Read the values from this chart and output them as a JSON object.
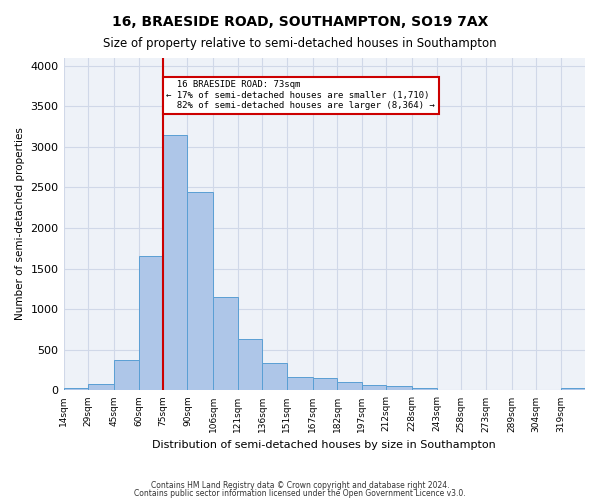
{
  "title": "16, BRAESIDE ROAD, SOUTHAMPTON, SO19 7AX",
  "subtitle": "Size of property relative to semi-detached houses in Southampton",
  "xlabel": "Distribution of semi-detached houses by size in Southampton",
  "ylabel": "Number of semi-detached properties",
  "footer_line1": "Contains HM Land Registry data © Crown copyright and database right 2024.",
  "footer_line2": "Contains public sector information licensed under the Open Government Licence v3.0.",
  "bar_color": "#aec6e8",
  "bar_edge_color": "#5a9fd4",
  "grid_color": "#d0d8e8",
  "background_color": "#eef2f8",
  "annotation_box_color": "#ffffff",
  "annotation_border_color": "#cc0000",
  "vline_color": "#cc0000",
  "annotation_text_line1": "16 BRAESIDE ROAD: 73sqm",
  "annotation_text_line2": "← 17% of semi-detached houses are smaller (1,710)",
  "annotation_text_line3": "82% of semi-detached houses are larger (8,364) →",
  "categories": [
    "14sqm",
    "29sqm",
    "45sqm",
    "60sqm",
    "75sqm",
    "90sqm",
    "106sqm",
    "121sqm",
    "136sqm",
    "151sqm",
    "167sqm",
    "182sqm",
    "197sqm",
    "212sqm",
    "228sqm",
    "243sqm",
    "258sqm",
    "273sqm",
    "289sqm",
    "304sqm",
    "319sqm"
  ],
  "bin_edges": [
    14,
    29,
    45,
    60,
    75,
    90,
    106,
    121,
    136,
    151,
    167,
    182,
    197,
    212,
    228,
    243,
    258,
    273,
    289,
    304,
    319
  ],
  "bin_widths": [
    15,
    16,
    15,
    15,
    15,
    16,
    15,
    15,
    15,
    16,
    15,
    15,
    15,
    16,
    15,
    15,
    15,
    16,
    15,
    15,
    15
  ],
  "values": [
    30,
    75,
    380,
    1660,
    3150,
    2440,
    1150,
    630,
    340,
    170,
    150,
    100,
    65,
    50,
    30,
    0,
    0,
    0,
    0,
    0,
    30
  ],
  "ylim": [
    0,
    4100
  ],
  "yticks": [
    0,
    500,
    1000,
    1500,
    2000,
    2500,
    3000,
    3500,
    4000
  ],
  "vline_x": 75
}
